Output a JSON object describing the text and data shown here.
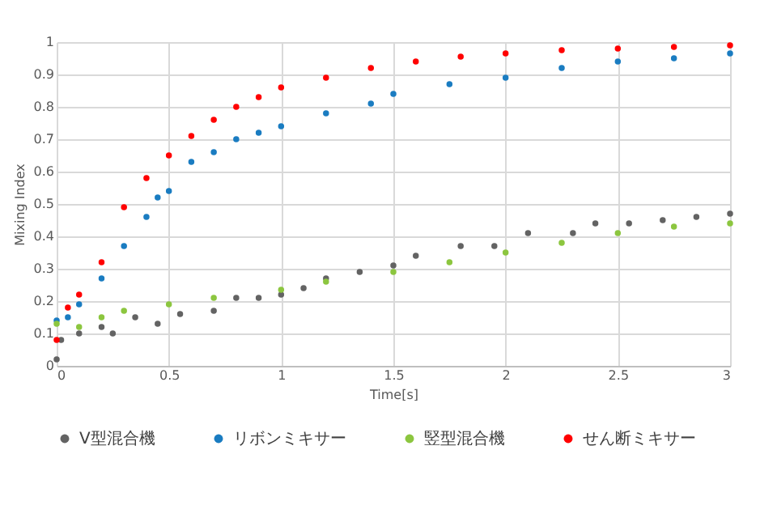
{
  "chart_data": {
    "type": "scatter",
    "xlabel": "Time[s]",
    "ylabel": "Mixing Index",
    "xlim": [
      0,
      3
    ],
    "xticks": [
      0,
      0.5,
      1,
      1.5,
      2,
      2.5,
      3
    ],
    "ylim": [
      0,
      1
    ],
    "yticks": [
      0,
      0.1,
      0.2,
      0.3,
      0.4,
      0.5,
      0.6,
      0.7,
      0.8,
      0.9,
      1
    ],
    "grid": true,
    "legend": "bottom",
    "marker": "circle",
    "series": [
      {
        "name": "V型混合機",
        "color": "#636363",
        "x": [
          0,
          0.02,
          0.1,
          0.2,
          0.25,
          0.35,
          0.45,
          0.55,
          0.7,
          0.8,
          0.9,
          1.0,
          1.1,
          1.2,
          1.35,
          1.5,
          1.6,
          1.8,
          1.95,
          2.1,
          2.3,
          2.4,
          2.55,
          2.7,
          2.85,
          3.0
        ],
        "values": [
          0.02,
          0.08,
          0.1,
          0.12,
          0.1,
          0.15,
          0.13,
          0.16,
          0.17,
          0.21,
          0.21,
          0.22,
          0.24,
          0.27,
          0.29,
          0.31,
          0.34,
          0.37,
          0.37,
          0.41,
          0.41,
          0.44,
          0.44,
          0.45,
          0.46,
          0.47
        ]
      },
      {
        "name": "リボンミキサー",
        "color": "#1a7cc1",
        "x": [
          0,
          0.05,
          0.1,
          0.2,
          0.3,
          0.4,
          0.45,
          0.5,
          0.6,
          0.7,
          0.8,
          0.9,
          1.0,
          1.2,
          1.4,
          1.5,
          1.75,
          2.0,
          2.25,
          2.5,
          2.75,
          3.0
        ],
        "values": [
          0.14,
          0.15,
          0.19,
          0.27,
          0.37,
          0.46,
          0.52,
          0.54,
          0.63,
          0.66,
          0.7,
          0.72,
          0.74,
          0.78,
          0.81,
          0.84,
          0.87,
          0.89,
          0.92,
          0.94,
          0.95,
          0.965
        ]
      },
      {
        "name": "竪型混合機",
        "color": "#8cc63f",
        "x": [
          0,
          0.1,
          0.2,
          0.3,
          0.5,
          0.7,
          1.0,
          1.2,
          1.5,
          1.75,
          2.0,
          2.25,
          2.5,
          2.75,
          3.0
        ],
        "values": [
          0.13,
          0.12,
          0.15,
          0.17,
          0.19,
          0.21,
          0.235,
          0.26,
          0.29,
          0.32,
          0.35,
          0.38,
          0.41,
          0.43,
          0.44
        ]
      },
      {
        "name": "せん断ミキサー",
        "color": "#ff0000",
        "x": [
          0,
          0.05,
          0.1,
          0.2,
          0.3,
          0.4,
          0.5,
          0.6,
          0.7,
          0.8,
          0.9,
          1.0,
          1.2,
          1.4,
          1.6,
          1.8,
          2.0,
          2.25,
          2.5,
          2.75,
          3.0
        ],
        "values": [
          0.08,
          0.18,
          0.22,
          0.32,
          0.49,
          0.58,
          0.65,
          0.71,
          0.76,
          0.8,
          0.83,
          0.86,
          0.89,
          0.92,
          0.94,
          0.955,
          0.965,
          0.975,
          0.98,
          0.985,
          0.99
        ]
      }
    ]
  }
}
